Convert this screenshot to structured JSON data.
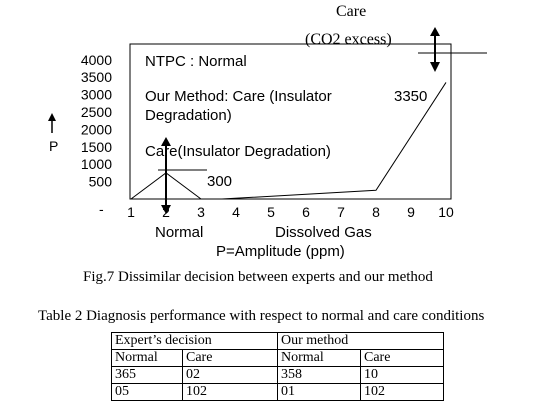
{
  "figure": {
    "caption": "Fig.7 Dissimilar decision between experts and our method",
    "annotations": {
      "care_top": "Care",
      "co2_excess": "(CO2 excess)",
      "ntpc": "NTPC : Normal",
      "our_method_1": "Our Method: Care (Insulator",
      "our_method_2": "Degradation)",
      "care_insulator": "Care(Insulator Degradation)",
      "value_300": "300",
      "value_3350": "3350",
      "p_label": "P",
      "normal_label": "Normal",
      "dissolved_gas": "Dissolved Gas",
      "x_axis_title": "P=Amplitude (ppm)"
    }
  },
  "chart_data": {
    "type": "line",
    "x_ticks": [
      "1",
      "2",
      "3",
      "4",
      "5",
      "6",
      "7",
      "8",
      "9",
      "10"
    ],
    "y_ticks": [
      "500",
      "1000",
      "1500",
      "2000",
      "2500",
      "3000",
      "3500",
      "4000"
    ],
    "series": [
      {
        "x": [
          1,
          3.6,
          8,
          10
        ],
        "y": [
          0,
          0,
          250,
          3350
        ]
      },
      {
        "x": [
          1,
          2,
          3
        ],
        "y": [
          0,
          750,
          0
        ]
      }
    ],
    "ylabel": "P",
    "xlabel": "P=Amplitude (ppm)",
    "xlim": [
      1,
      10
    ],
    "ylim": [
      0,
      4000
    ],
    "grid": false
  },
  "table": {
    "title": "Table 2 Diagnosis performance with respect to normal and care conditions",
    "group_headers": [
      "Expert’s decision",
      "Our method"
    ],
    "sub_headers": [
      "Normal",
      "Care",
      "Normal",
      "Care"
    ],
    "rows": [
      [
        "365",
        "02",
        "358",
        "10"
      ],
      [
        "05",
        "102",
        "01",
        "102"
      ]
    ]
  }
}
